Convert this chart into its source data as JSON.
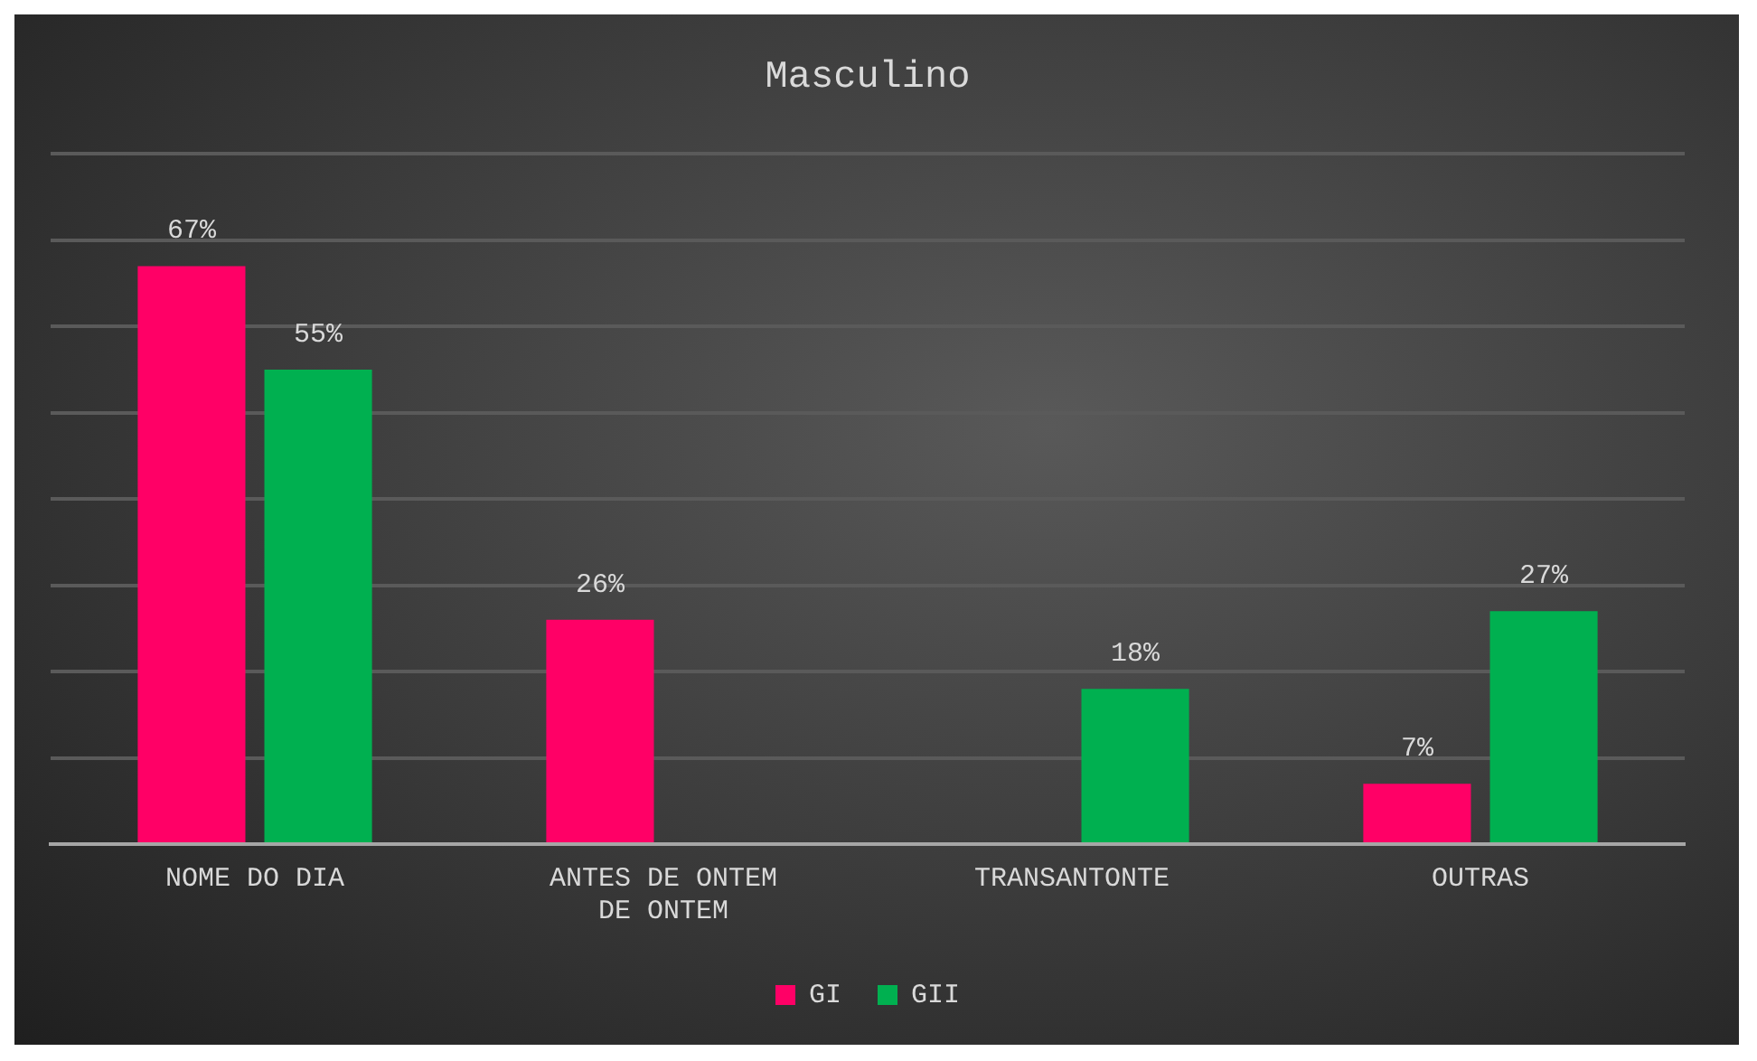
{
  "chart_data": {
    "type": "bar",
    "title": "Masculino",
    "categories": [
      "NOME DO DIA",
      "ANTES DE ONTEM DE ONTEM",
      "TRANSANTONTE",
      "OUTRAS"
    ],
    "series": [
      {
        "name": "GI",
        "color": "#ff0066",
        "values": [
          67,
          26,
          null,
          7
        ],
        "value_labels": [
          "67%",
          "26%",
          null,
          "7%"
        ]
      },
      {
        "name": "GII",
        "color": "#00b050",
        "values": [
          55,
          null,
          18,
          27
        ],
        "value_labels": [
          "55%",
          null,
          "18%",
          "27%"
        ]
      }
    ],
    "ylim": [
      0,
      80
    ],
    "yticks": [
      {
        "value": 0,
        "label": null
      },
      {
        "value": 10,
        "label": null
      },
      {
        "value": 20,
        "label": null
      },
      {
        "value": 30,
        "label": null
      },
      {
        "value": 40,
        "label": null
      },
      {
        "value": 50,
        "label": null
      },
      {
        "value": 60,
        "label": null
      },
      {
        "value": 70,
        "label": null
      },
      {
        "value": 80,
        "label": null
      }
    ],
    "grid": "y",
    "legend": "bottom",
    "tick_labels": "x"
  }
}
